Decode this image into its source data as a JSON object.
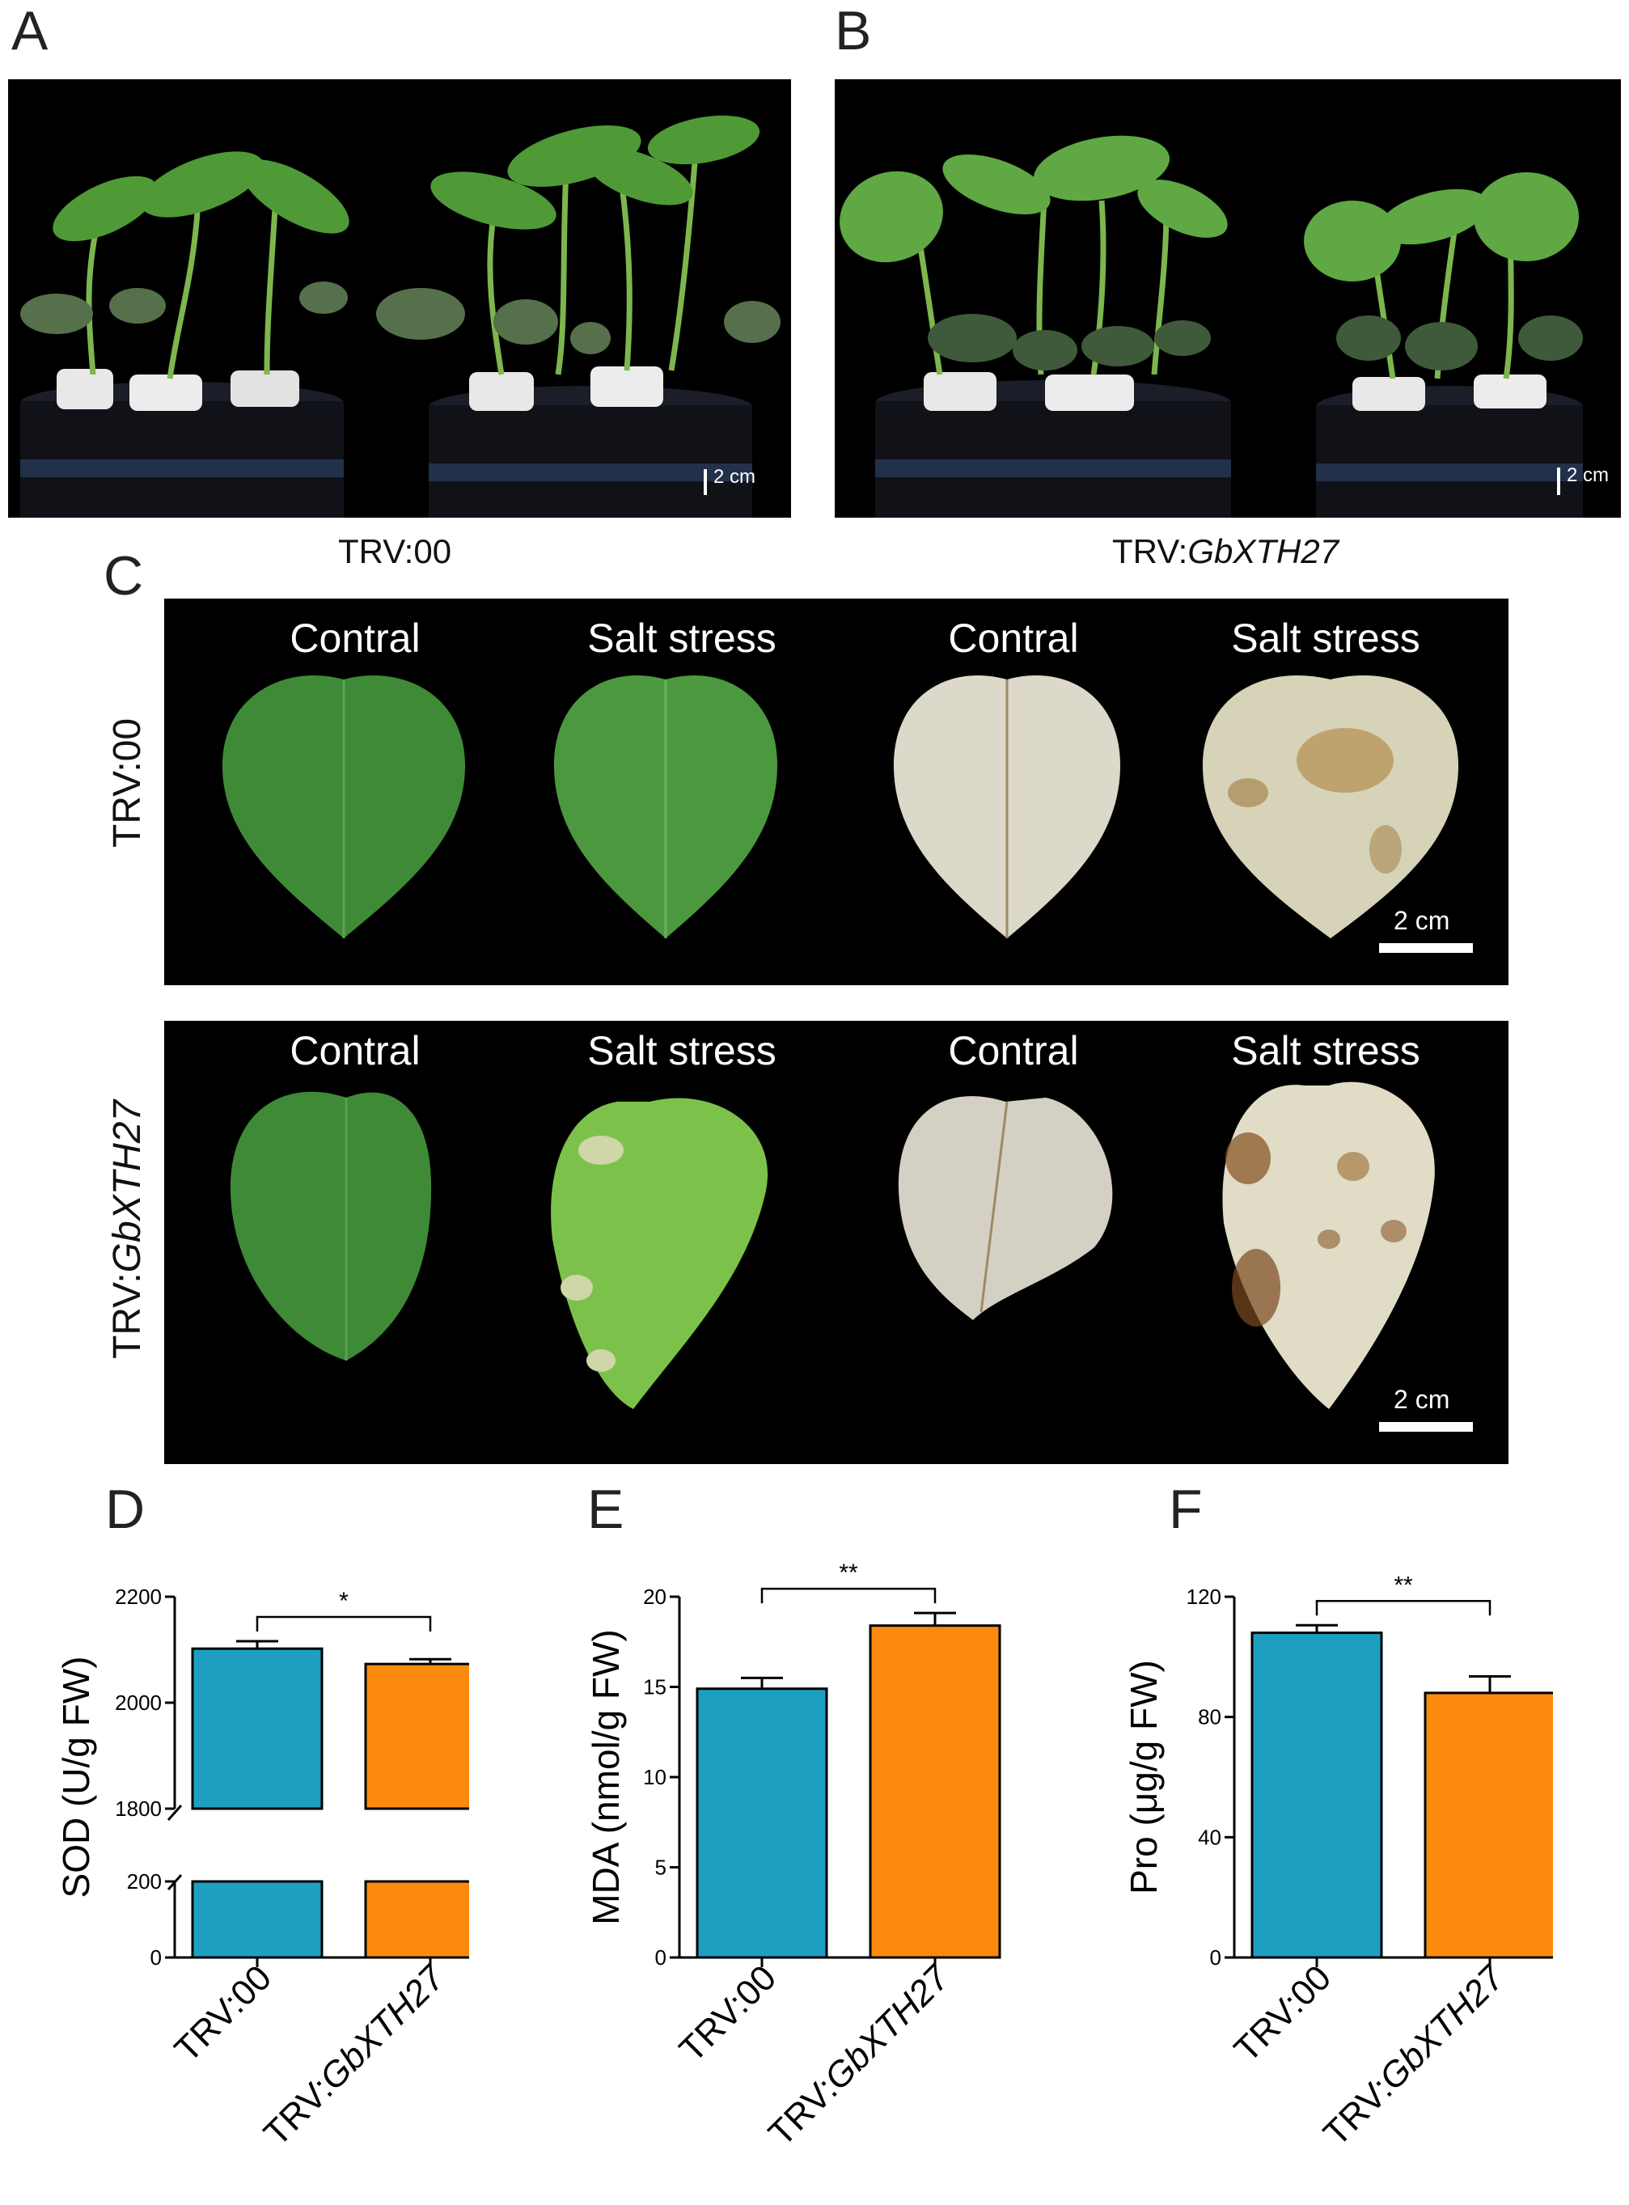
{
  "panels": {
    "A": "A",
    "B": "B",
    "C": "C",
    "D": "D",
    "E": "E",
    "F": "F"
  },
  "photo_A": {
    "scale": "2 cm",
    "caption": "TRV:00"
  },
  "photo_B": {
    "scale": "2 cm",
    "caption_prefix": "TRV:",
    "caption_gene": "GbXTH27"
  },
  "panel_C": {
    "row1": {
      "label": "TRV:00",
      "headers": [
        "Contral",
        "Salt stress",
        "Contral",
        "Salt stress"
      ],
      "scale": "2 cm"
    },
    "row2": {
      "label_prefix": "TRV:",
      "label_gene": "GbXTH27",
      "headers": [
        "Contral",
        "Salt stress",
        "Contral",
        "Salt stress"
      ],
      "scale": "2 cm"
    }
  },
  "colors": {
    "trv00": "#1f9fbf",
    "gbxth27": "#fb8a0f",
    "leaf_green": "#3f8a36",
    "stained_leaf": "#d8d4c6"
  },
  "chart_data": [
    {
      "type": "bar",
      "panel": "D",
      "ylabel": "SOD (U/g FW)",
      "categories": [
        "TRV:00",
        "TRV:GbXTH27"
      ],
      "values": [
        2102,
        2073
      ],
      "errors": [
        14,
        9
      ],
      "broken_axis": {
        "lower": [
          0,
          200
        ],
        "upper": [
          1800,
          2200
        ]
      },
      "yticks": [
        0,
        200,
        1800,
        2000,
        2200
      ],
      "significance": "*"
    },
    {
      "type": "bar",
      "panel": "E",
      "ylabel": "MDA (nmol/g FW)",
      "categories": [
        "TRV:00",
        "TRV:GbXTH27"
      ],
      "values": [
        14.9,
        18.4
      ],
      "errors": [
        0.6,
        0.7
      ],
      "ylim": [
        0,
        20
      ],
      "yticks": [
        0,
        5,
        10,
        15,
        20
      ],
      "significance": "**"
    },
    {
      "type": "bar",
      "panel": "F",
      "ylabel": "Pro (μg/g FW)",
      "categories": [
        "TRV:00",
        "TRV:GbXTH27"
      ],
      "values": [
        108,
        88
      ],
      "errors": [
        2.5,
        5.5
      ],
      "ylim": [
        0,
        120
      ],
      "yticks": [
        0,
        40,
        80,
        120
      ],
      "significance": "**"
    }
  ]
}
